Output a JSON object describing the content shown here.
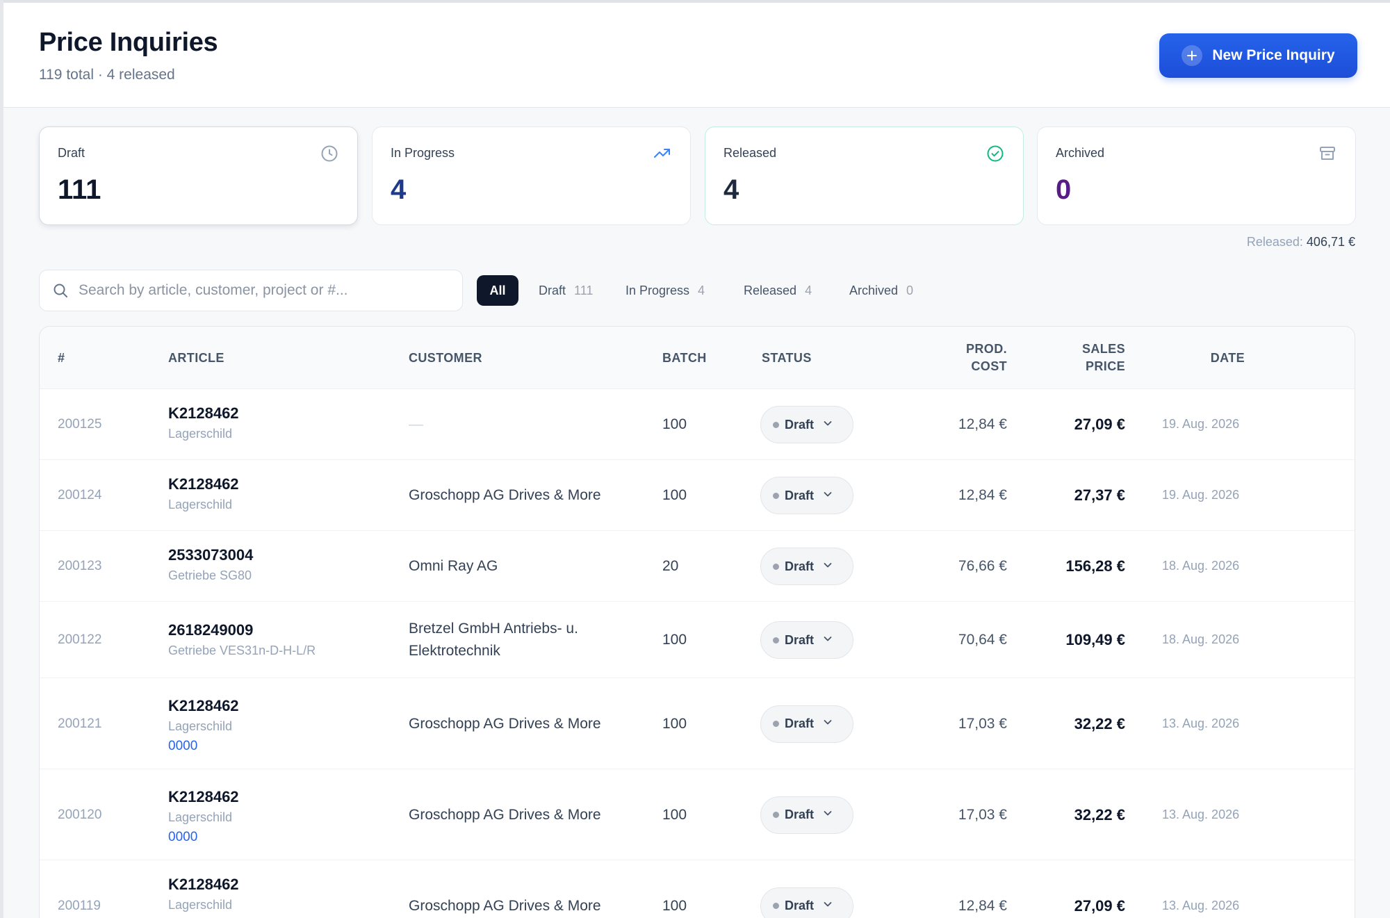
{
  "header": {
    "title": "Price Inquiries",
    "subtitle": "119 total · 4 released",
    "new_button_label": "New Price Inquiry"
  },
  "stats": [
    {
      "label": "Draft",
      "value": "111",
      "icon": "clock-icon",
      "color": "#0f172a"
    },
    {
      "label": "In Progress",
      "value": "4",
      "icon": "trending-up-icon",
      "color": "#1e3a8a"
    },
    {
      "label": "Released",
      "value": "4",
      "icon": "check-circle-icon",
      "color": "#1e293b"
    },
    {
      "label": "Archived",
      "value": "0",
      "icon": "archive-icon",
      "color": "#581c87"
    }
  ],
  "released_total": {
    "label": "Released:",
    "value": "406,71 €"
  },
  "search": {
    "placeholder": "Search by article, customer, project or #..."
  },
  "filters": [
    {
      "label": "All",
      "count": ""
    },
    {
      "label": "Draft",
      "count": "111"
    },
    {
      "label": "In Progress",
      "count": "4"
    },
    {
      "label": "Released",
      "count": "4"
    },
    {
      "label": "Archived",
      "count": "0"
    }
  ],
  "table": {
    "columns": {
      "number": "#",
      "article": "ARTICLE",
      "customer": "CUSTOMER",
      "batch": "BATCH",
      "status": "STATUS",
      "prod_cost_1": "PROD.",
      "prod_cost_2": "COST",
      "sales_price_1": "SALES",
      "sales_price_2": "PRICE",
      "date": "DATE"
    },
    "rows": [
      {
        "number": "200125",
        "code": "K2128462",
        "desc": "Lagerschild",
        "extra": "",
        "customer": "—",
        "batch": "100",
        "status": "Draft",
        "cost": "12,84 €",
        "price": "27,09 €",
        "date": "19. Aug. 2026"
      },
      {
        "number": "200124",
        "code": "K2128462",
        "desc": "Lagerschild",
        "extra": "",
        "customer": "Groschopp AG Drives & More",
        "batch": "100",
        "status": "Draft",
        "cost": "12,84 €",
        "price": "27,37 €",
        "date": "19. Aug. 2026"
      },
      {
        "number": "200123",
        "code": "2533073004",
        "desc": "Getriebe SG80",
        "extra": "",
        "customer": "Omni Ray AG",
        "batch": "20",
        "status": "Draft",
        "cost": "76,66 €",
        "price": "156,28 €",
        "date": "18. Aug. 2026"
      },
      {
        "number": "200122",
        "code": "2618249009",
        "desc": "Getriebe VES31n-D-H-L/R",
        "extra": "",
        "customer": "Bretzel GmbH Antriebs- u. Elektrotechnik",
        "batch": "100",
        "status": "Draft",
        "cost": "70,64 €",
        "price": "109,49 €",
        "date": "18. Aug. 2026"
      },
      {
        "number": "200121",
        "code": "K2128462",
        "desc": "Lagerschild",
        "extra": "0000",
        "customer": "Groschopp AG Drives & More",
        "batch": "100",
        "status": "Draft",
        "cost": "17,03 €",
        "price": "32,22 €",
        "date": "13. Aug. 2026"
      },
      {
        "number": "200120",
        "code": "K2128462",
        "desc": "Lagerschild",
        "extra": "0000",
        "customer": "Groschopp AG Drives & More",
        "batch": "100",
        "status": "Draft",
        "cost": "17,03 €",
        "price": "32,22 €",
        "date": "13. Aug. 2026"
      },
      {
        "number": "200119",
        "code": "K2128462",
        "desc": "Lagerschild",
        "extra": "",
        "customer": "Groschopp AG Drives & More",
        "batch": "100",
        "status": "Draft",
        "cost": "12,84 €",
        "price": "27,09 €",
        "date": "13. Aug. 2026"
      }
    ]
  }
}
